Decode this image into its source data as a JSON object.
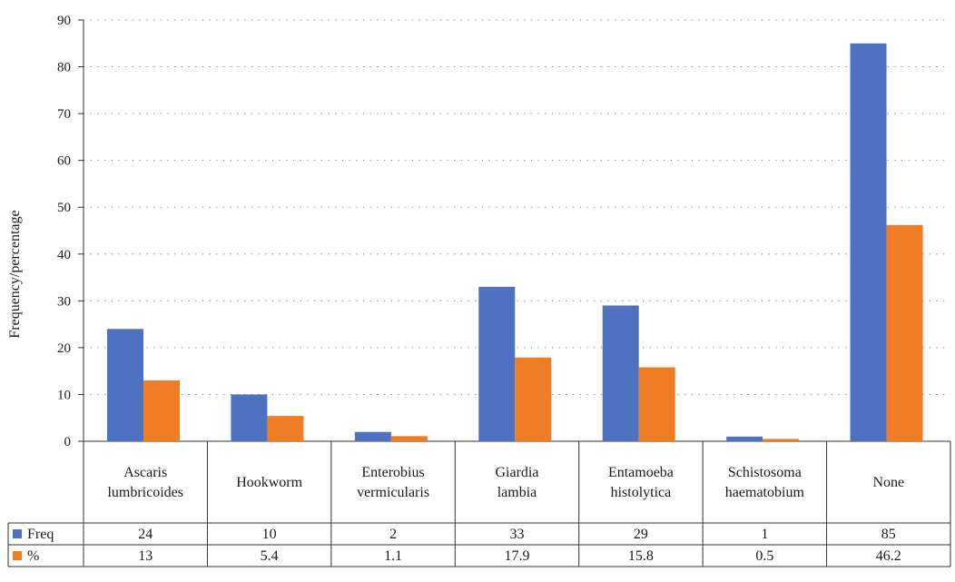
{
  "chart_data": {
    "type": "bar",
    "ylabel": "Frequency/percentage",
    "ylim": [
      0,
      90
    ],
    "yticks": [
      0,
      10,
      20,
      30,
      40,
      50,
      60,
      70,
      80,
      90
    ],
    "grid": "dotted horizontal",
    "legend": "data table below the plot",
    "categories": [
      [
        "Ascaris",
        "lumbricoides"
      ],
      [
        "Hookworm"
      ],
      [
        "Enterobius",
        "vermicularis"
      ],
      [
        "Giardia",
        "lambia"
      ],
      [
        "Entamoeba",
        "histolytica"
      ],
      [
        "Schistosoma",
        "haematobium"
      ],
      [
        "None"
      ]
    ],
    "series": [
      {
        "name": "Freq",
        "color": "#4f72c0",
        "values": [
          24,
          10,
          2,
          33,
          29,
          1,
          85
        ],
        "labels": [
          "24",
          "10",
          "2",
          "33",
          "29",
          "1",
          "85"
        ]
      },
      {
        "name": "%",
        "color": "#ee7d26",
        "values": [
          13,
          5.4,
          1.1,
          17.9,
          15.8,
          0.5,
          46.2
        ],
        "labels": [
          "13",
          "5.4",
          "1.1",
          "17.9",
          "15.8",
          "0.5",
          "46.2"
        ]
      }
    ]
  }
}
